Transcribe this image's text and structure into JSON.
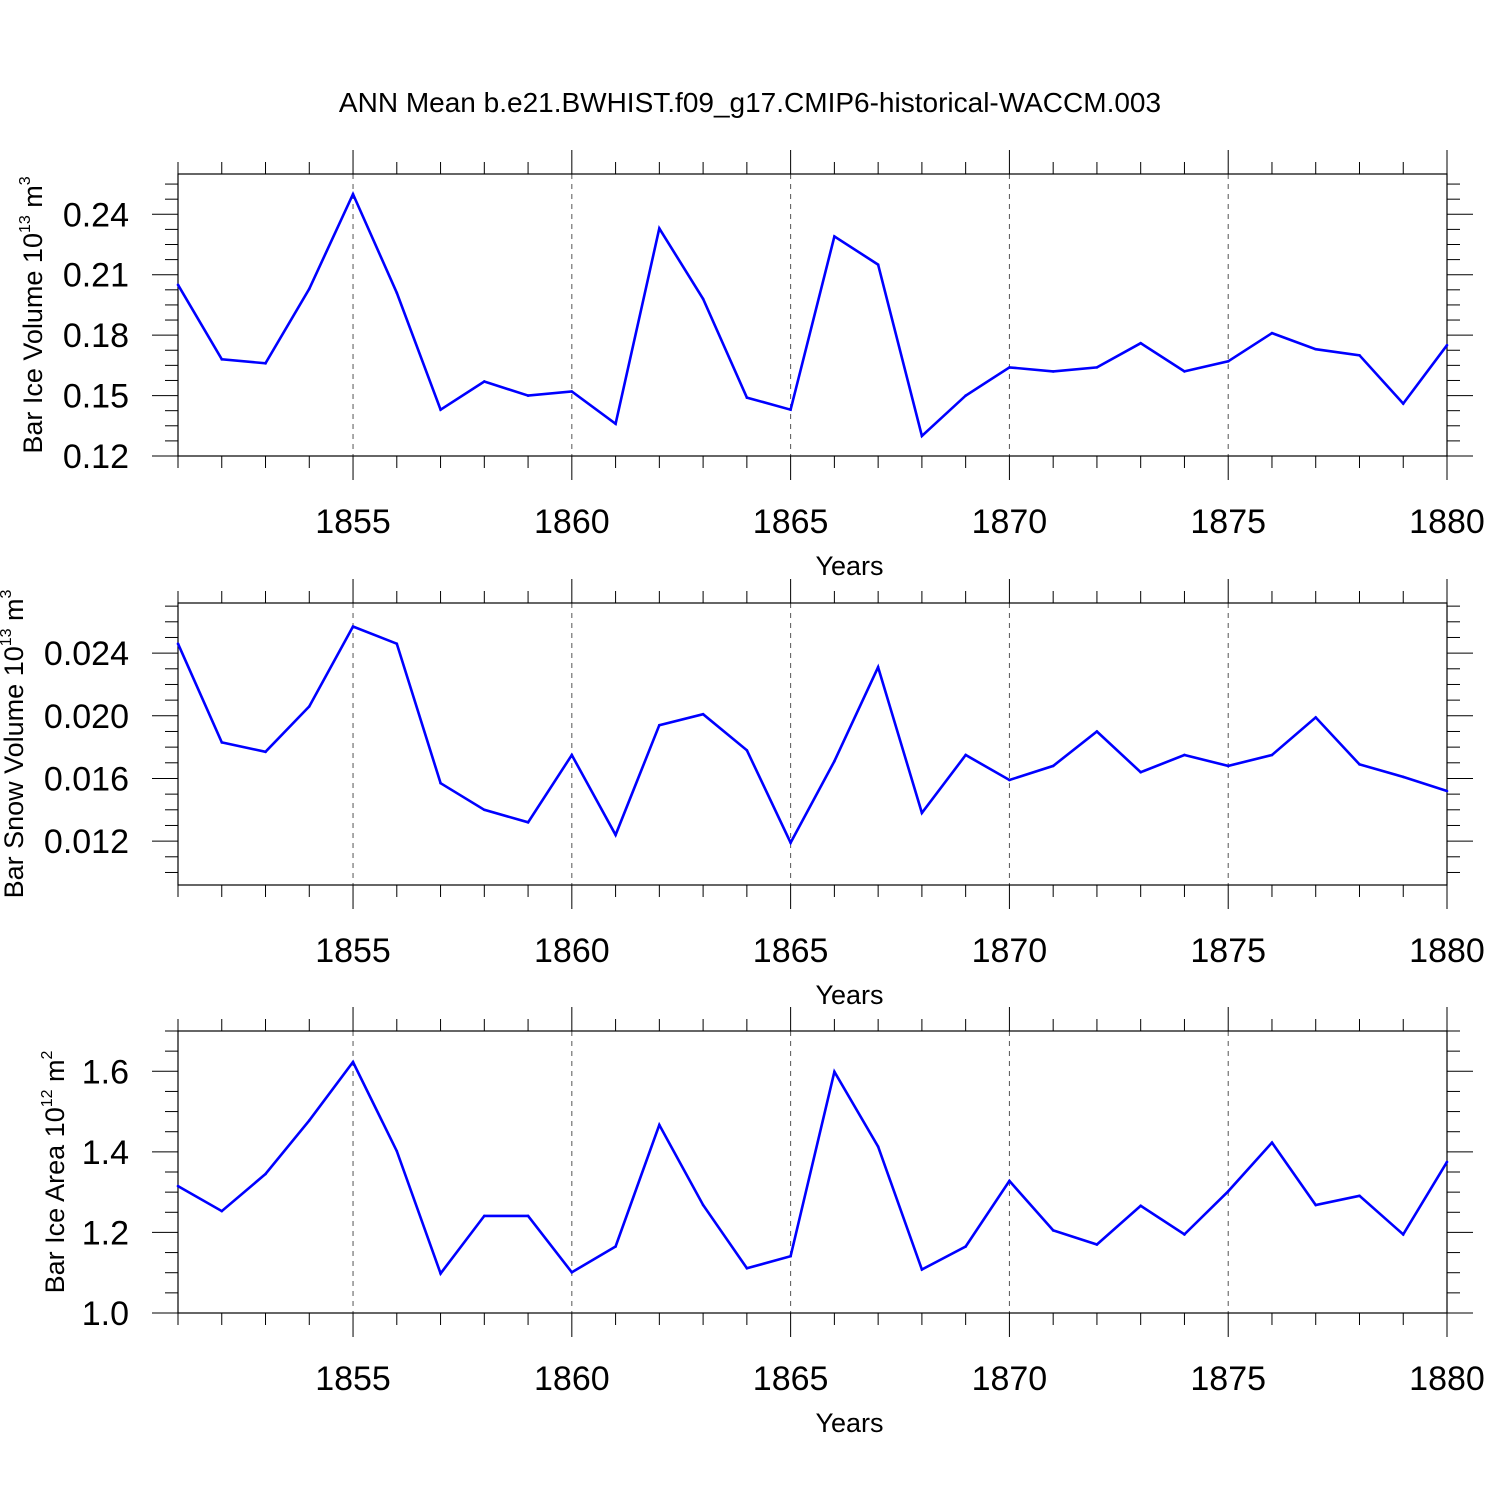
{
  "title": "ANN Mean b.e21.BWHIST.f09_g17.CMIP6-historical-WACCM.003",
  "colors": {
    "line": "#0000ff",
    "axis": "#000000",
    "grid": "#555555"
  },
  "chart_data": [
    {
      "type": "line",
      "xlabel": "Years",
      "ylabel": {
        "prefix": "Bar Ice Volume 10",
        "exp": "13",
        "unit": " m",
        "unit_exp": "3"
      },
      "xlim": [
        1851,
        1880
      ],
      "ylim": [
        0.12,
        0.26
      ],
      "xticks": [
        "1855",
        "1860",
        "1865",
        "1870",
        "1875",
        "1880"
      ],
      "yticks": [
        "0.12",
        "0.15",
        "0.18",
        "0.21",
        "0.24"
      ],
      "grid": "vertical dashed at major x ticks",
      "x": [
        1851,
        1852,
        1853,
        1854,
        1855,
        1856,
        1857,
        1858,
        1859,
        1860,
        1861,
        1862,
        1863,
        1864,
        1865,
        1866,
        1867,
        1868,
        1869,
        1870,
        1871,
        1872,
        1873,
        1874,
        1875,
        1876,
        1877,
        1878,
        1879,
        1880
      ],
      "values": [
        0.205,
        0.168,
        0.166,
        0.203,
        0.25,
        0.201,
        0.143,
        0.157,
        0.15,
        0.152,
        0.136,
        0.233,
        0.198,
        0.149,
        0.143,
        0.229,
        0.215,
        0.13,
        0.15,
        0.164,
        0.162,
        0.164,
        0.176,
        0.162,
        0.167,
        0.181,
        0.173,
        0.17,
        0.146,
        0.175
      ]
    },
    {
      "type": "line",
      "xlabel": "Years",
      "ylabel": {
        "prefix": "Bar Snow Volume 10",
        "exp": "13",
        "unit": " m",
        "unit_exp": "3"
      },
      "xlim": [
        1851,
        1880
      ],
      "ylim": [
        0.0092,
        0.0272
      ],
      "xticks": [
        "1855",
        "1860",
        "1865",
        "1870",
        "1875",
        "1880"
      ],
      "yticks": [
        "0.012",
        "0.016",
        "0.020",
        "0.024"
      ],
      "grid": "vertical dashed at major x ticks",
      "x": [
        1851,
        1852,
        1853,
        1854,
        1855,
        1856,
        1857,
        1858,
        1859,
        1860,
        1861,
        1862,
        1863,
        1864,
        1865,
        1866,
        1867,
        1868,
        1869,
        1870,
        1871,
        1872,
        1873,
        1874,
        1875,
        1876,
        1877,
        1878,
        1879,
        1880
      ],
      "values": [
        0.0246,
        0.0183,
        0.0177,
        0.0206,
        0.0257,
        0.0246,
        0.0157,
        0.014,
        0.0132,
        0.0175,
        0.0124,
        0.0194,
        0.0201,
        0.0178,
        0.0119,
        0.0171,
        0.0231,
        0.0138,
        0.0175,
        0.0159,
        0.0168,
        0.019,
        0.0164,
        0.0175,
        0.0168,
        0.0175,
        0.0199,
        0.0169,
        0.0161,
        0.0152
      ]
    },
    {
      "type": "line",
      "xlabel": "Years",
      "ylabel": {
        "prefix": "Bar Ice Area 10",
        "exp": "12",
        "unit": " m",
        "unit_exp": "2"
      },
      "xlim": [
        1851,
        1880
      ],
      "ylim": [
        1.0,
        1.7
      ],
      "xticks": [
        "1855",
        "1860",
        "1865",
        "1870",
        "1875",
        "1880"
      ],
      "yticks": [
        "1.0",
        "1.2",
        "1.4",
        "1.6"
      ],
      "grid": "vertical dashed at major x ticks",
      "x": [
        1851,
        1852,
        1853,
        1854,
        1855,
        1856,
        1857,
        1858,
        1859,
        1860,
        1861,
        1862,
        1863,
        1864,
        1865,
        1866,
        1867,
        1868,
        1869,
        1870,
        1871,
        1872,
        1873,
        1874,
        1875,
        1876,
        1877,
        1878,
        1879,
        1880
      ],
      "values": [
        1.315,
        1.253,
        1.345,
        1.478,
        1.623,
        1.402,
        1.098,
        1.241,
        1.241,
        1.101,
        1.165,
        1.467,
        1.268,
        1.111,
        1.141,
        1.599,
        1.413,
        1.108,
        1.165,
        1.328,
        1.205,
        1.17,
        1.266,
        1.195,
        1.302,
        1.423,
        1.268,
        1.291,
        1.195,
        1.375
      ]
    }
  ]
}
